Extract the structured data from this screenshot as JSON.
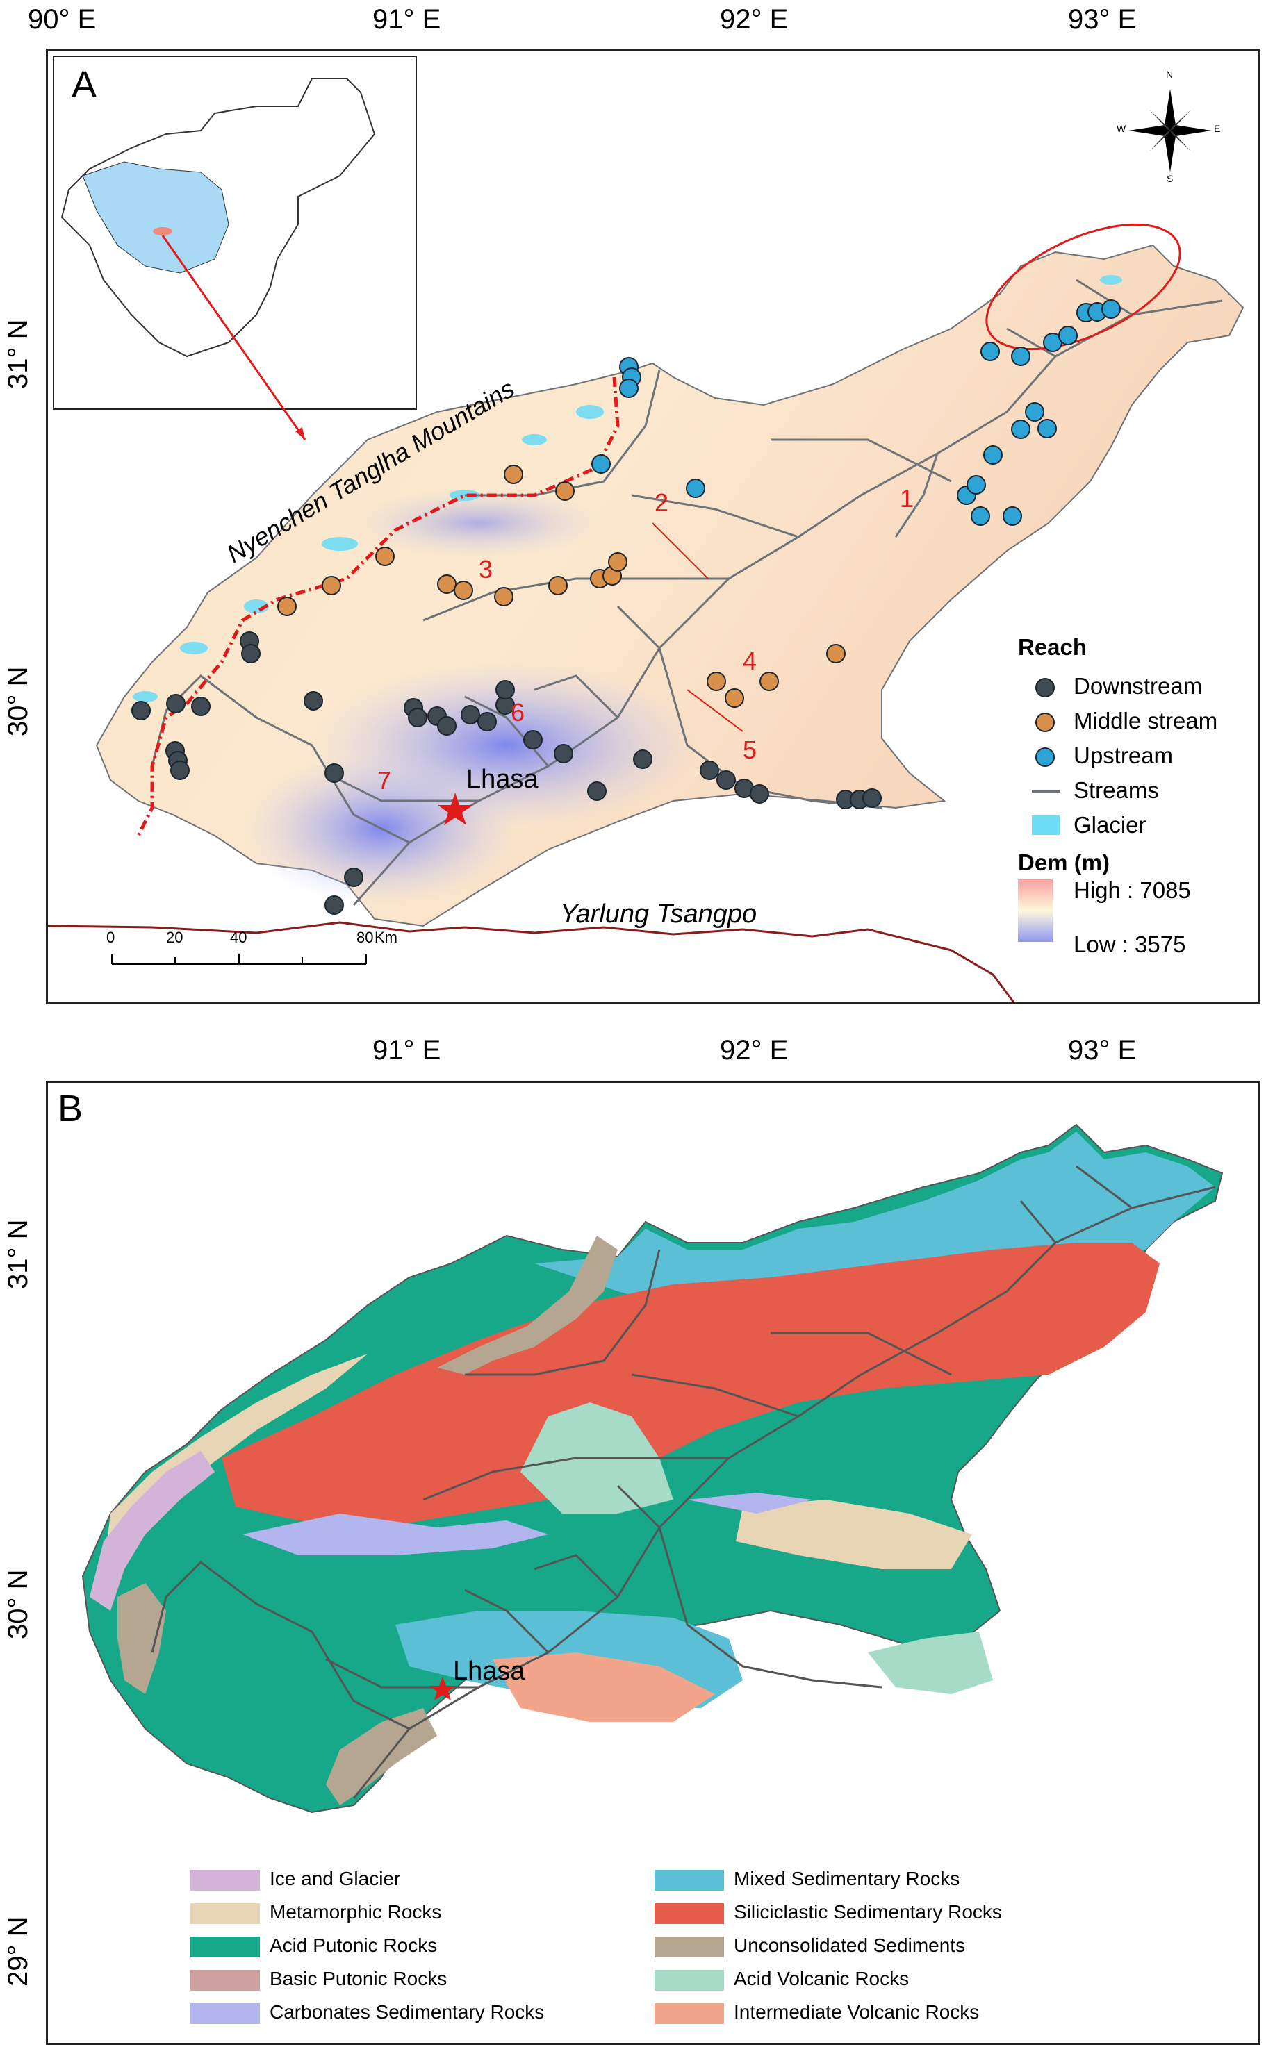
{
  "map_top": {
    "letter": "A",
    "lon_ticks": [
      "90° E",
      "91° E",
      "92° E",
      "93° E"
    ],
    "lat_ticks": [
      "31° N",
      "30° N"
    ],
    "mountain_label": "Nyenchen Tanglha Mountains",
    "river_label": "Yarlung Tsangpo",
    "city_label": "Lhasa",
    "reach_numbers": [
      "1",
      "2",
      "3",
      "4",
      "5",
      "6",
      "7"
    ],
    "scale": {
      "labels": [
        "0",
        "20",
        "40",
        "80"
      ],
      "unit": "Km"
    },
    "compass": {
      "n": "N",
      "s": "S",
      "e": "E",
      "w": "W"
    },
    "legend": {
      "reach_title": "Reach",
      "downstream": "Downstream",
      "middle": "Middle stream",
      "upstream": "Upstream",
      "streams": "Streams",
      "glacier": "Glacier",
      "dem_title": "Dem (m)",
      "high": "High : 7085",
      "low": "Low : 3575"
    },
    "colors": {
      "downstream": "#3f4a52",
      "middle": "#d8904a",
      "upstream": "#2ea3d6",
      "stream": "#6e737a",
      "glacier": "#6fdcf5",
      "route": "#e01b1b"
    }
  },
  "map_bottom": {
    "letter": "B",
    "lon_ticks": [
      "91° E",
      "92° E",
      "93° E"
    ],
    "lat_ticks": [
      "31° N",
      "30° N",
      "29° N"
    ],
    "city_label": "Lhasa",
    "legend": [
      {
        "label": "Ice and Glacier",
        "color": "#d3b3d8"
      },
      {
        "label": "Metamorphic Rocks",
        "color": "#e8d5b5"
      },
      {
        "label": "Acid Putonic Rocks",
        "color": "#17a88a"
      },
      {
        "label": "Basic Putonic Rocks",
        "color": "#cfa0a0"
      },
      {
        "label": "Carbonates Sedimentary Rocks",
        "color": "#b3b5ee"
      },
      {
        "label": "Mixed Sedimentary Rocks",
        "color": "#5bbfd6"
      },
      {
        "label": "Siliciclastic Sedimentary Rocks",
        "color": "#e65c4a"
      },
      {
        "label": "Unconsolidated Sediments",
        "color": "#b5a691"
      },
      {
        "label": "Acid Volcanic Rocks",
        "color": "#a6dbc8"
      },
      {
        "label": "Intermediate Volcanic Rocks",
        "color": "#f3a58c"
      }
    ]
  }
}
